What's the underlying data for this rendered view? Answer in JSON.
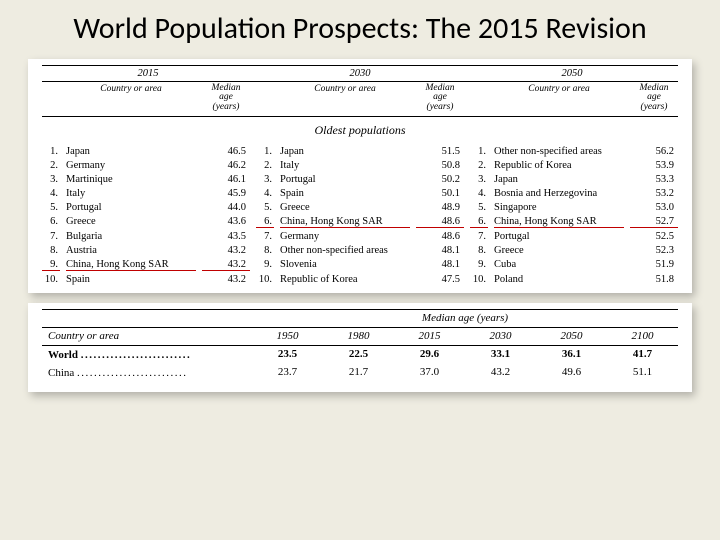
{
  "title": "World Population Prospects: The 2015 Revision",
  "top": {
    "years": [
      "2015",
      "2030",
      "2050"
    ],
    "col_country": "Country or area",
    "col_age": "Median age (years)",
    "subtitle": "Oldest populations",
    "highlight_color": "#c00000",
    "font_family": "Times New Roman",
    "columns": [
      [
        {
          "r": "1.",
          "c": "Japan",
          "v": "46.5"
        },
        {
          "r": "2.",
          "c": "Germany",
          "v": "46.2"
        },
        {
          "r": "3.",
          "c": "Martinique",
          "v": "46.1"
        },
        {
          "r": "4.",
          "c": "Italy",
          "v": "45.9"
        },
        {
          "r": "5.",
          "c": "Portugal",
          "v": "44.0"
        },
        {
          "r": "6.",
          "c": "Greece",
          "v": "43.6"
        },
        {
          "r": "7.",
          "c": "Bulgaria",
          "v": "43.5"
        },
        {
          "r": "8.",
          "c": "Austria",
          "v": "43.2"
        },
        {
          "r": "9.",
          "c": "China, Hong Kong SAR",
          "v": "43.2",
          "mark": true
        },
        {
          "r": "10.",
          "c": "Spain",
          "v": "43.2"
        }
      ],
      [
        {
          "r": "1.",
          "c": "Japan",
          "v": "51.5"
        },
        {
          "r": "2.",
          "c": "Italy",
          "v": "50.8"
        },
        {
          "r": "3.",
          "c": "Portugal",
          "v": "50.2"
        },
        {
          "r": "4.",
          "c": "Spain",
          "v": "50.1"
        },
        {
          "r": "5.",
          "c": "Greece",
          "v": "48.9"
        },
        {
          "r": "6.",
          "c": "China, Hong Kong SAR",
          "v": "48.6",
          "mark": true
        },
        {
          "r": "7.",
          "c": "Germany",
          "v": "48.6"
        },
        {
          "r": "8.",
          "c": "Other non-specified areas",
          "v": "48.1"
        },
        {
          "r": "9.",
          "c": "Slovenia",
          "v": "48.1"
        },
        {
          "r": "10.",
          "c": "Republic of Korea",
          "v": "47.5"
        }
      ],
      [
        {
          "r": "1.",
          "c": "Other non-specified areas",
          "v": "56.2"
        },
        {
          "r": "2.",
          "c": "Republic of Korea",
          "v": "53.9"
        },
        {
          "r": "3.",
          "c": "Japan",
          "v": "53.3"
        },
        {
          "r": "4.",
          "c": "Bosnia and Herzegovina",
          "v": "53.2"
        },
        {
          "r": "5.",
          "c": "Singapore",
          "v": "53.0"
        },
        {
          "r": "6.",
          "c": "China, Hong Kong SAR",
          "v": "52.7",
          "mark": true
        },
        {
          "r": "7.",
          "c": "Portugal",
          "v": "52.5"
        },
        {
          "r": "8.",
          "c": "Greece",
          "v": "52.3"
        },
        {
          "r": "9.",
          "c": "Cuba",
          "v": "51.9"
        },
        {
          "r": "10.",
          "c": "Poland",
          "v": "51.8"
        }
      ]
    ]
  },
  "bottom": {
    "col_country": "Country or area",
    "col_age": "Median age (years)",
    "years": [
      "1950",
      "1980",
      "2015",
      "2030",
      "2050",
      "2100"
    ],
    "rows": [
      {
        "label": "World",
        "bold": true,
        "vals": [
          "23.5",
          "22.5",
          "29.6",
          "33.1",
          "36.1",
          "41.7"
        ]
      },
      {
        "label": "China",
        "bold": false,
        "vals": [
          "23.7",
          "21.7",
          "37.0",
          "43.2",
          "49.6",
          "51.1"
        ]
      }
    ]
  }
}
